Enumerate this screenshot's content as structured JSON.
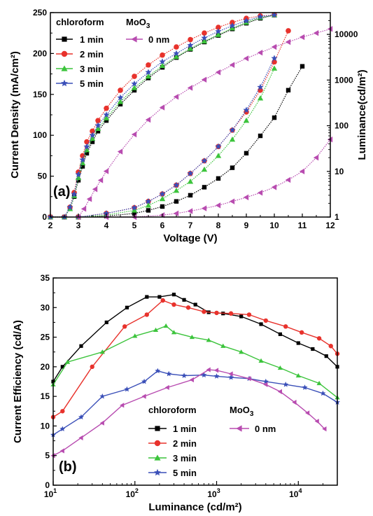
{
  "chart_data": [
    {
      "type": "line",
      "panel_label": "(a)",
      "xlabel": "Voltage (V)",
      "ylabel": "Current Density (mA/cm²)",
      "y2label": "Luminance(cd/m²)",
      "xlim": [
        2,
        12
      ],
      "ylim": [
        0,
        250
      ],
      "y2lim": [
        1,
        30000
      ],
      "y2scale": "log",
      "xticks": [
        "2",
        "3",
        "4",
        "5",
        "6",
        "7",
        "8",
        "9",
        "10",
        "11",
        "12"
      ],
      "yticks": [
        "0",
        "50",
        "100",
        "150",
        "200",
        "250"
      ],
      "y2ticks": [
        "1",
        "10",
        "100",
        "1000",
        "10000"
      ],
      "legend": {
        "placement": "top-left",
        "header_left": "chloroform",
        "header_right": "MoO",
        "header_right_sub": "3"
      },
      "series": [
        {
          "name": "1 min",
          "color": "#000000",
          "marker": "square",
          "current_density": {
            "x": [
              2.0,
              2.5,
              2.7,
              2.85,
              3.0,
              3.15,
              3.3,
              3.5,
              3.7,
              4.0,
              4.5,
              5.0,
              5.5,
              6.0,
              6.5,
              7.0,
              7.5,
              8.0,
              8.5,
              9.0,
              9.5,
              10.0
            ],
            "y": [
              0,
              0,
              10,
              25,
              45,
              62,
              78,
              92,
              105,
              118,
              138,
              155,
              170,
              183,
              195,
              205,
              214,
              222,
              230,
              237,
              243,
              247
            ]
          },
          "luminance": {
            "x": [
              3.0,
              4.0,
              5.0,
              5.5,
              6.0,
              6.5,
              7.0,
              7.5,
              8.0,
              8.5,
              9.0,
              9.5,
              10.0,
              10.5,
              11.0
            ],
            "y": [
              1,
              1.05,
              1.2,
              1.4,
              1.7,
              2.2,
              3,
              4.5,
              7,
              12,
              25,
              60,
              150,
              600,
              2000
            ]
          }
        },
        {
          "name": "2 min",
          "color": "#e8322c",
          "marker": "circle",
          "current_density": {
            "x": [
              2.0,
              2.5,
              2.7,
              2.85,
              3.0,
              3.15,
              3.3,
              3.5,
              3.7,
              4.0,
              4.5,
              5.0,
              5.5,
              6.0,
              6.5,
              7.0,
              7.5,
              8.0,
              8.5,
              9.0,
              9.5,
              10.0
            ],
            "y": [
              0,
              0,
              12,
              30,
              55,
              75,
              92,
              105,
              118,
              133,
              155,
              172,
              186,
              198,
              208,
              217,
              225,
              232,
              238,
              243,
              246,
              247
            ]
          },
          "luminance": {
            "x": [
              3.0,
              4.0,
              5.0,
              5.5,
              6.0,
              6.5,
              7.0,
              7.5,
              8.0,
              8.5,
              9.0,
              9.5,
              10.0,
              10.5
            ],
            "y": [
              1,
              1.2,
              1.6,
              2.2,
              3.2,
              5,
              9,
              17,
              35,
              80,
              200,
              600,
              2500,
              12000
            ]
          }
        },
        {
          "name": "3 min",
          "color": "#3cc43c",
          "marker": "triangle-up",
          "current_density": {
            "x": [
              2.0,
              2.5,
              2.7,
              2.85,
              3.0,
              3.15,
              3.3,
              3.5,
              3.7,
              4.0,
              4.5,
              5.0,
              5.5,
              6.0,
              6.5,
              7.0,
              7.5,
              8.0,
              8.5,
              9.0,
              9.5,
              10.0
            ],
            "y": [
              0,
              0,
              10,
              26,
              48,
              66,
              82,
              96,
              108,
              121,
              141,
              158,
              172,
              185,
              196,
              206,
              215,
              223,
              231,
              238,
              244,
              247
            ]
          },
          "luminance": {
            "x": [
              3.0,
              4.0,
              5.0,
              5.5,
              6.0,
              6.5,
              7.0,
              7.5,
              8.0,
              8.5,
              9.0,
              9.5,
              10.0
            ],
            "y": [
              1,
              1.1,
              1.4,
              1.8,
              2.5,
              3.8,
              6,
              11,
              22,
              50,
              130,
              400,
              1800
            ]
          }
        },
        {
          "name": "5 min",
          "color": "#3a4fb8",
          "marker": "star",
          "current_density": {
            "x": [
              2.0,
              2.5,
              2.7,
              2.85,
              3.0,
              3.15,
              3.3,
              3.5,
              3.7,
              4.0,
              4.5,
              5.0,
              5.5,
              6.0,
              6.5,
              7.0,
              7.5,
              8.0,
              8.5,
              9.0,
              9.5,
              10.0
            ],
            "y": [
              0,
              0,
              12,
              28,
              52,
              70,
              86,
              100,
              112,
              125,
              146,
              163,
              177,
              190,
              200,
              210,
              219,
              227,
              234,
              240,
              245,
              247
            ]
          },
          "luminance": {
            "x": [
              3.0,
              4.0,
              5.0,
              5.5,
              6.0,
              6.5,
              7.0,
              7.5,
              8.0,
              8.5,
              9.0,
              9.5,
              10.0
            ],
            "y": [
              1,
              1.2,
              1.6,
              2.2,
              3.2,
              5,
              9,
              17,
              35,
              80,
              220,
              700,
              3000
            ]
          }
        },
        {
          "name": "0 nm",
          "color": "#b84cb0",
          "marker": "triangle-left",
          "current_density": {
            "x": [
              3.0,
              3.2,
              3.4,
              3.6,
              3.8,
              4.0,
              4.5,
              5.0,
              5.5,
              6.0,
              6.5,
              7.0,
              7.5,
              8.0,
              8.5,
              9.0,
              9.5,
              10.0,
              10.5,
              11.0,
              11.5,
              12.0
            ],
            "y": [
              0,
              10,
              22,
              34,
              45,
              56,
              80,
              101,
              119,
              134,
              147,
              158,
              168,
              177,
              186,
              194,
              201,
              208,
              214,
              220,
              225,
              230
            ]
          },
          "luminance": {
            "x": [
              4.0,
              5.0,
              6.0,
              6.5,
              7.0,
              7.5,
              8.0,
              8.5,
              9.0,
              9.5,
              10.0,
              10.5,
              11.0,
              11.5,
              12.0
            ],
            "y": [
              1,
              1,
              1.1,
              1.2,
              1.35,
              1.55,
              1.8,
              2.2,
              2.7,
              3.4,
              4.5,
              6.5,
              10,
              20,
              50
            ]
          }
        }
      ]
    },
    {
      "type": "line",
      "panel_label": "(b)",
      "xlabel": "Luminance (cd/m²)",
      "ylabel": "Current Efficiency (cd/A)",
      "xscale": "log",
      "xlim": [
        10,
        30000
      ],
      "ylim": [
        0,
        35
      ],
      "xticks": [
        {
          "base": "10",
          "exp": "1"
        },
        {
          "base": "10",
          "exp": "2"
        },
        {
          "base": "10",
          "exp": "3"
        },
        {
          "base": "10",
          "exp": "4"
        }
      ],
      "yticks": [
        "0",
        "5",
        "10",
        "15",
        "20",
        "25",
        "30",
        "35"
      ],
      "legend": {
        "placement": "lower-center",
        "header_left": "chloroform",
        "header_right": "MoO",
        "header_right_sub": "3"
      },
      "series": [
        {
          "name": "1 min",
          "color": "#000000",
          "marker": "square",
          "x": [
            10,
            13,
            22,
            45,
            80,
            140,
            200,
            300,
            400,
            550,
            800,
            1200,
            2000,
            3500,
            6000,
            10000,
            15000,
            22000,
            30000
          ],
          "y": [
            17.5,
            20,
            23.5,
            27.5,
            30,
            31.8,
            31.8,
            32.2,
            31.3,
            30.5,
            29.2,
            29,
            28.5,
            27.2,
            25.5,
            24,
            23,
            21.8,
            20
          ]
        },
        {
          "name": "2 min",
          "color": "#e8322c",
          "marker": "circle",
          "x": [
            10,
            13,
            30,
            75,
            140,
            220,
            300,
            450,
            700,
            1000,
            1500,
            2500,
            4000,
            7000,
            11000,
            18000,
            25000,
            30000
          ],
          "y": [
            11.5,
            12.5,
            20,
            26.8,
            28.8,
            31.2,
            30.5,
            30,
            29.3,
            29.1,
            29,
            28.8,
            27.8,
            26.8,
            25.8,
            24.8,
            23.5,
            22.2
          ]
        },
        {
          "name": "3 min",
          "color": "#3cc43c",
          "marker": "triangle-up",
          "x": [
            10,
            15,
            40,
            100,
            180,
            240,
            300,
            500,
            800,
            1200,
            2000,
            3500,
            6000,
            10000,
            18000,
            30000
          ],
          "y": [
            17,
            20.8,
            22.5,
            25.2,
            26.2,
            26.9,
            25.8,
            25,
            24.5,
            23.5,
            22.5,
            21,
            19.8,
            18.5,
            17.2,
            14.8
          ]
        },
        {
          "name": "5 min",
          "color": "#3a4fb8",
          "marker": "star",
          "x": [
            10,
            13,
            22,
            40,
            80,
            130,
            190,
            260,
            400,
            700,
            1000,
            1500,
            2500,
            4000,
            7000,
            12000,
            20000,
            30000
          ],
          "y": [
            8.5,
            9.5,
            11.5,
            15,
            16.2,
            17.5,
            19.3,
            18.8,
            18.5,
            18.6,
            18.4,
            18.2,
            18,
            17.5,
            17,
            16.5,
            15.5,
            14
          ]
        },
        {
          "name": "0 nm",
          "color": "#b84cb0",
          "marker": "triangle-left",
          "x": [
            10,
            13,
            22,
            40,
            70,
            130,
            250,
            500,
            800,
            1000,
            1500,
            2500,
            4000,
            6000,
            9000,
            13000,
            17000,
            21000
          ],
          "y": [
            5,
            5.8,
            8,
            10.5,
            13.5,
            15,
            16.5,
            17.8,
            19.5,
            19.4,
            18.8,
            18,
            17,
            15.8,
            14,
            12.2,
            10.8,
            9.5
          ]
        }
      ]
    }
  ]
}
